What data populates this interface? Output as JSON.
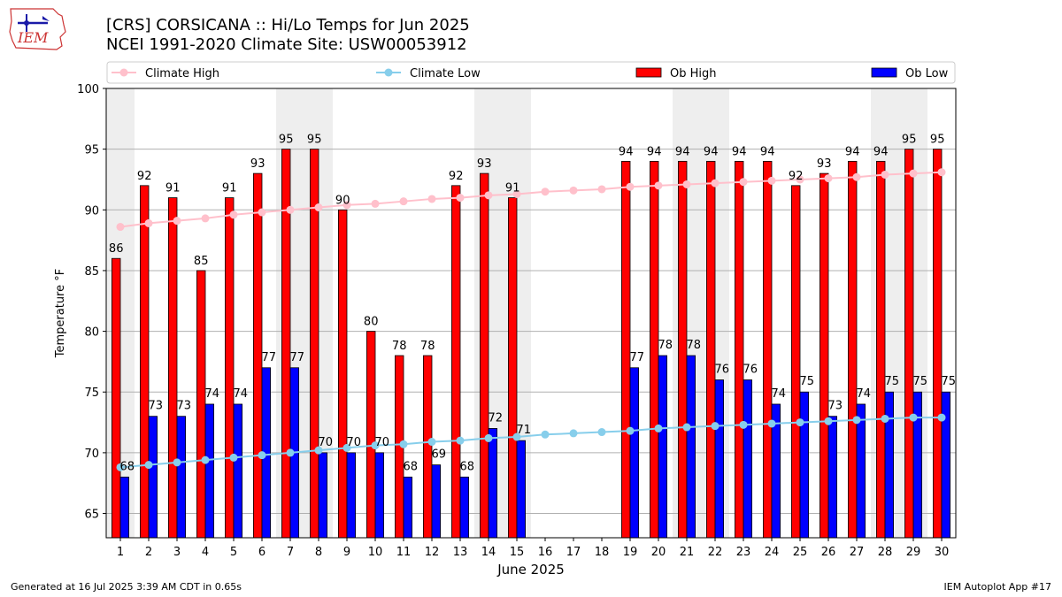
{
  "header": {
    "logo_text": "IEM",
    "title_line1": "[CRS] CORSICANA :: Hi/Lo Temps for Jun 2025",
    "title_line2": "NCEI 1991-2020 Climate Site: USW00053912"
  },
  "footer": {
    "left": "Generated at 16 Jul 2025 3:39 AM CDT in 0.65s",
    "right": "IEM Autoplot App #17"
  },
  "colors": {
    "ob_high": "#ff0000",
    "ob_low": "#0000ff",
    "climate_high": "#ffc0cb",
    "climate_low": "#87ceeb",
    "weekend_band": "#eeeeee",
    "grid": "#b0b0b0"
  },
  "chart_data": {
    "type": "bar",
    "xlabel": "June 2025",
    "ylabel": "Temperature °F",
    "ylim": [
      63,
      100
    ],
    "yticks": [
      65,
      70,
      75,
      80,
      85,
      90,
      95,
      100
    ],
    "grid": "horizontal",
    "legend_position": "top",
    "days": [
      1,
      2,
      3,
      4,
      5,
      6,
      7,
      8,
      9,
      10,
      11,
      12,
      13,
      14,
      15,
      16,
      17,
      18,
      19,
      20,
      21,
      22,
      23,
      24,
      25,
      26,
      27,
      28,
      29,
      30
    ],
    "weekend_days": [
      1,
      7,
      8,
      14,
      15,
      21,
      22,
      28,
      29
    ],
    "series": [
      {
        "name": "Ob High",
        "kind": "bar",
        "values": [
          86,
          92,
          91,
          85,
          91,
          93,
          95,
          95,
          90,
          80,
          78,
          78,
          92,
          93,
          91,
          null,
          null,
          null,
          94,
          94,
          94,
          94,
          94,
          94,
          92,
          93,
          94,
          94,
          95,
          95
        ]
      },
      {
        "name": "Ob Low",
        "kind": "bar",
        "values": [
          68,
          73,
          73,
          74,
          74,
          77,
          77,
          70,
          70,
          70,
          68,
          69,
          68,
          72,
          71,
          null,
          null,
          null,
          77,
          78,
          78,
          76,
          76,
          74,
          75,
          73,
          74,
          75,
          75,
          75
        ]
      },
      {
        "name": "Climate High",
        "kind": "line",
        "values": [
          88.6,
          88.9,
          89.1,
          89.3,
          89.6,
          89.8,
          90.0,
          90.2,
          90.4,
          90.5,
          90.7,
          90.9,
          91.0,
          91.2,
          91.3,
          91.5,
          91.6,
          91.7,
          91.9,
          92.0,
          92.1,
          92.2,
          92.3,
          92.4,
          92.5,
          92.6,
          92.7,
          92.9,
          93.0,
          93.1
        ]
      },
      {
        "name": "Climate Low",
        "kind": "line",
        "values": [
          68.8,
          69.0,
          69.2,
          69.4,
          69.6,
          69.8,
          70.0,
          70.2,
          70.4,
          70.6,
          70.7,
          70.9,
          71.0,
          71.2,
          71.3,
          71.5,
          71.6,
          71.7,
          71.8,
          72.0,
          72.1,
          72.2,
          72.3,
          72.4,
          72.5,
          72.6,
          72.7,
          72.8,
          72.9,
          72.9
        ]
      }
    ]
  }
}
